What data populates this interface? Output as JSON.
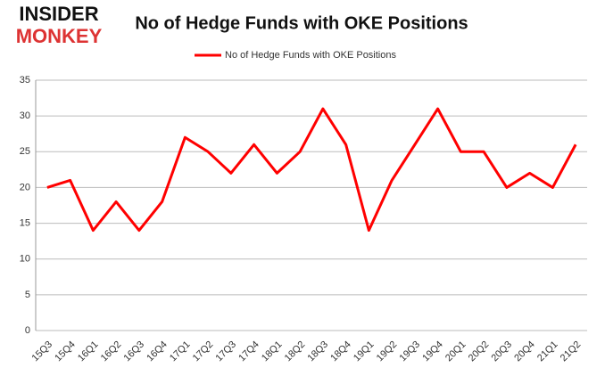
{
  "logo": {
    "line1": "INSIDER",
    "line2": "MONKEY"
  },
  "chart_data": {
    "type": "line",
    "title": "No of Hedge Funds with OKE Positions",
    "categories": [
      "15Q3",
      "15Q4",
      "16Q1",
      "16Q2",
      "16Q3",
      "16Q4",
      "17Q1",
      "17Q2",
      "17Q3",
      "17Q4",
      "18Q1",
      "18Q2",
      "18Q3",
      "18Q4",
      "19Q1",
      "19Q2",
      "19Q3",
      "19Q4",
      "20Q1",
      "20Q2",
      "20Q3",
      "20Q4",
      "21Q1",
      "21Q2"
    ],
    "series": [
      {
        "name": "No of Hedge Funds with OKE Positions",
        "color": "#ff0000",
        "values": [
          20,
          21,
          14,
          18,
          14,
          18,
          27,
          25,
          22,
          26,
          22,
          25,
          31,
          26,
          14,
          21,
          26,
          31,
          25,
          25,
          20,
          22,
          20,
          26
        ]
      }
    ],
    "ylim": [
      0,
      35
    ],
    "yticks": [
      0,
      5,
      10,
      15,
      20,
      25,
      30,
      35
    ],
    "grid": true,
    "legend": "top"
  }
}
